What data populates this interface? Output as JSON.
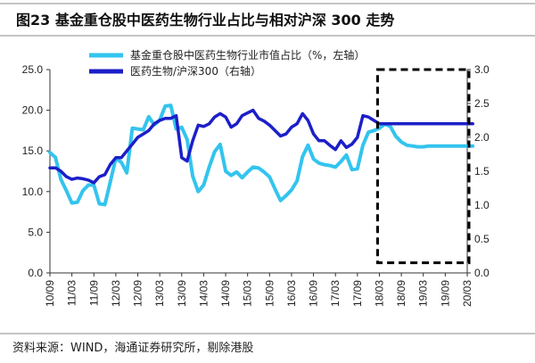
{
  "chart_data": {
    "type": "line",
    "title": "图23 基金重仓股中医药生物行业占比与相对沪深 300 走势",
    "source": "资料来源：WIND，海通证券研究所，剔除港股",
    "xlabel": "",
    "ylabel_left": "",
    "ylabel_right": "",
    "x_tick_labels": [
      "10/09",
      "11/03",
      "11/09",
      "12/03",
      "12/09",
      "13/03",
      "13/09",
      "14/03",
      "14/09",
      "15/03",
      "15/09",
      "16/03",
      "16/09",
      "17/03",
      "17/09",
      "18/03",
      "18/09",
      "19/03",
      "19/09",
      "20/03"
    ],
    "y_left": {
      "lim": [
        0,
        25
      ],
      "ticks": [
        "0.0",
        "5.0",
        "10.0",
        "15.0",
        "20.0",
        "25.0"
      ]
    },
    "y_right": {
      "lim": [
        0,
        3
      ],
      "ticks": [
        "0.0",
        "0.5",
        "1.0",
        "1.5",
        "2.0",
        "2.5",
        "3.0"
      ]
    },
    "grid": false,
    "legend_position": "top-center",
    "highlight_box": {
      "x_from": "18/03",
      "x_to": "20/03",
      "style": "dashed"
    },
    "series": [
      {
        "name": "基金重仓股中医药生物行业市值占比（%，左轴）",
        "axis": "left",
        "color": "#33c4ee",
        "x": [
          0,
          0.25,
          0.5,
          0.75,
          1,
          1.25,
          1.5,
          1.75,
          2,
          2.25,
          2.5,
          2.75,
          3,
          3.25,
          3.5,
          3.75,
          4,
          4.25,
          4.5,
          4.75,
          5,
          5.25,
          5.5,
          5.75,
          6,
          6.25,
          6.5,
          6.75,
          7,
          7.25,
          7.5,
          7.75,
          8,
          8.25,
          8.5,
          8.75,
          9,
          9.25,
          9.5,
          9.75,
          10,
          10.25,
          10.5,
          10.75,
          11,
          11.25,
          11.5,
          11.75,
          12,
          12.25,
          12.5,
          12.75,
          13,
          13.25,
          13.5,
          13.75,
          14,
          14.25,
          14.5,
          14.75,
          15,
          15.25,
          15.5,
          15.75,
          16,
          16.25,
          16.5,
          16.75,
          17,
          17.25,
          17.5,
          17.75,
          18,
          18.25,
          18.5,
          18.75,
          19,
          19.25
        ],
        "values": [
          14.8,
          14.2,
          11.5,
          10.1,
          8.6,
          8.7,
          10.1,
          10.8,
          10.8,
          8.5,
          8.4,
          11.2,
          14.1,
          13.6,
          12.3,
          17.8,
          17.7,
          17.6,
          19.2,
          18.2,
          18.8,
          20.5,
          20.6,
          17.7,
          17.9,
          16.4,
          11.9,
          10.0,
          10.8,
          13.0,
          14.9,
          15.8,
          12.5,
          12.0,
          12.4,
          11.7,
          12.4,
          13.0,
          12.9,
          12.4,
          11.8,
          10.3,
          8.9,
          9.5,
          10.2,
          11.3,
          14.3,
          15.7,
          14.0,
          13.5,
          13.3,
          13.2,
          13.0,
          13.7,
          14.5,
          12.7,
          12.8,
          15.7,
          17.3,
          17.5,
          17.8,
          18.3,
          18.0,
          16.8,
          16.1,
          15.7,
          15.6,
          15.5,
          15.5,
          15.6,
          15.6,
          15.6,
          15.6,
          15.6,
          15.6,
          15.6,
          15.6,
          15.6
        ]
      },
      {
        "name": "医药生物/沪深300（右轴）",
        "axis": "right",
        "color": "#1c1fc8",
        "x": [
          0,
          0.25,
          0.5,
          0.75,
          1,
          1.25,
          1.5,
          1.75,
          2,
          2.25,
          2.5,
          2.75,
          3,
          3.25,
          3.5,
          3.75,
          4,
          4.25,
          4.5,
          4.75,
          5,
          5.25,
          5.5,
          5.75,
          6,
          6.25,
          6.5,
          6.75,
          7,
          7.25,
          7.5,
          7.75,
          8,
          8.25,
          8.5,
          8.75,
          9,
          9.25,
          9.5,
          9.75,
          10,
          10.25,
          10.5,
          10.75,
          11,
          11.25,
          11.5,
          11.75,
          12,
          12.25,
          12.5,
          12.75,
          13,
          13.25,
          13.5,
          13.75,
          14,
          14.25,
          14.5,
          14.75,
          15,
          15.25,
          15.5,
          15.75,
          16,
          16.25,
          16.5,
          16.75,
          17,
          17.25,
          17.5,
          17.75,
          18,
          18.25,
          18.5,
          18.75,
          19,
          19.25
        ],
        "values": [
          1.55,
          1.55,
          1.5,
          1.42,
          1.38,
          1.4,
          1.39,
          1.37,
          1.33,
          1.42,
          1.45,
          1.6,
          1.7,
          1.7,
          1.8,
          1.9,
          2.0,
          2.05,
          2.1,
          2.2,
          2.25,
          2.28,
          2.28,
          2.32,
          1.7,
          1.65,
          1.95,
          2.18,
          2.16,
          2.2,
          2.3,
          2.35,
          2.3,
          2.15,
          2.2,
          2.32,
          2.36,
          2.4,
          2.28,
          2.24,
          2.18,
          2.1,
          2.02,
          2.05,
          2.15,
          2.2,
          2.35,
          2.25,
          2.05,
          1.95,
          1.95,
          1.88,
          1.82,
          1.95,
          1.85,
          1.9,
          2.0,
          2.32,
          2.3,
          2.25,
          2.2,
          2.2,
          2.2,
          2.2,
          2.2,
          2.2,
          2.2,
          2.2,
          2.2,
          2.2,
          2.2,
          2.2,
          2.2,
          2.2,
          2.2,
          2.2,
          2.2,
          2.2
        ]
      }
    ]
  }
}
